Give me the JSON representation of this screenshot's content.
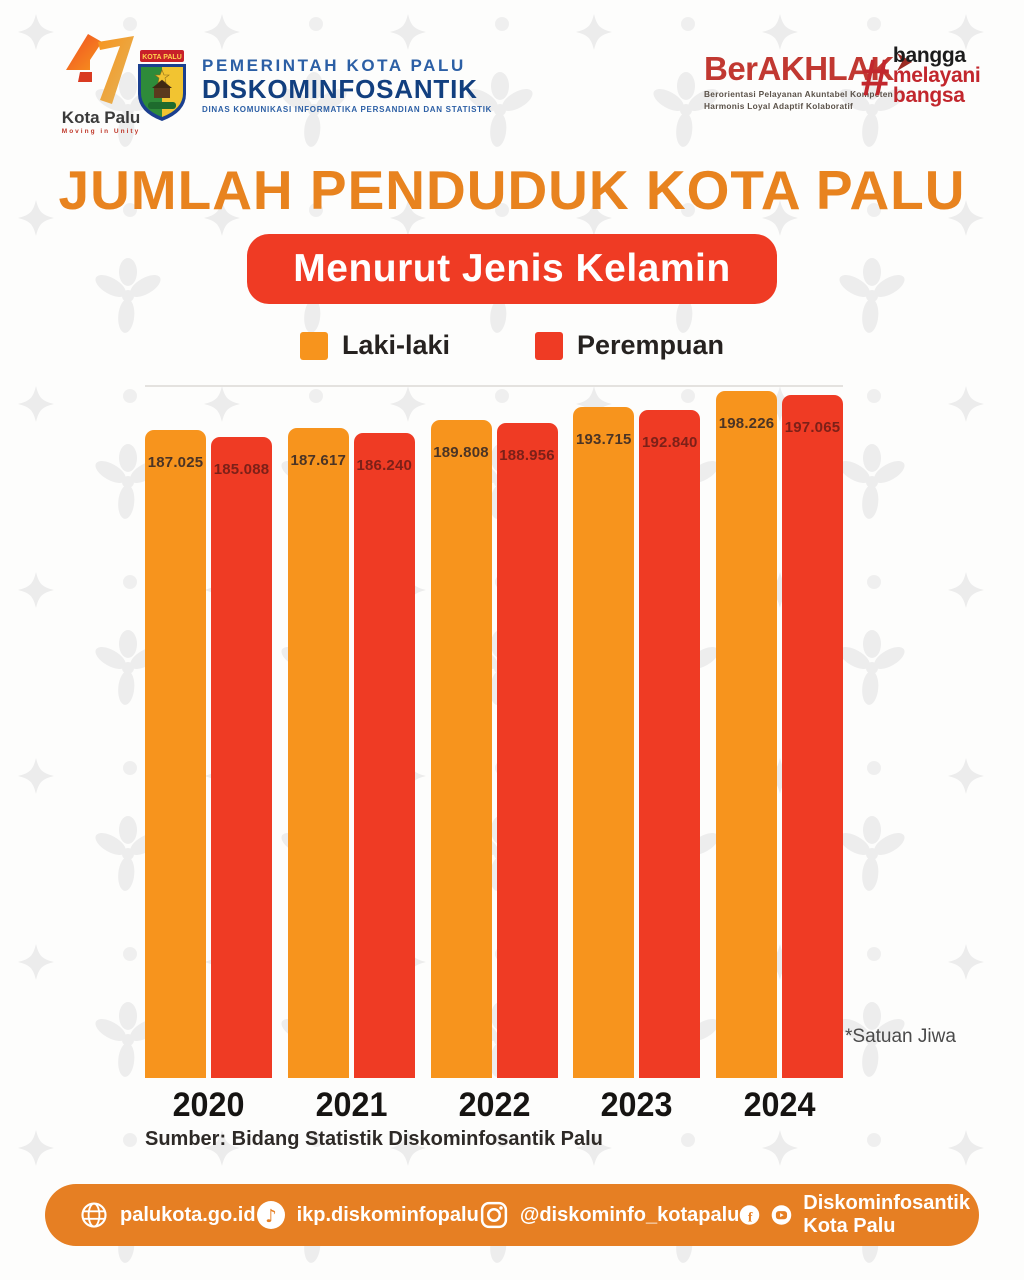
{
  "header": {
    "city_logo": {
      "name": "Kota Palu",
      "tagline": "Moving in Unity",
      "anniversary": "47"
    },
    "emblem_text": "KOTA PALU",
    "agency": {
      "line1": "PEMERINTAH KOTA PALU",
      "line2": "DISKOMINFOSANTIK",
      "line3": "DINAS KOMUNIKASI INFORMATIKA PERSANDIAN DAN STATISTIK"
    },
    "berakhlak": {
      "wordmark": "BerAKHLAK",
      "tagline1": "Berorientasi Pelayanan Akuntabel Kompeten",
      "tagline2": "Harmonis Loyal Adaptif Kolaboratif",
      "hashtag": "#",
      "words": [
        "bangga",
        "melayani",
        "bangsa"
      ]
    }
  },
  "title": "JUMLAH PENDUDUK KOTA PALU",
  "subtitle": "Menurut Jenis Kelamin",
  "chart_data": {
    "type": "bar",
    "title": "Jumlah Penduduk Kota Palu Menurut Jenis Kelamin",
    "categories": [
      "2020",
      "2021",
      "2022",
      "2023",
      "2024"
    ],
    "series": [
      {
        "name": "Laki-laki",
        "color": "#F7941D",
        "label_color": "#4b3425",
        "values": [
          187025,
          187617,
          189808,
          193715,
          198226
        ],
        "labels": [
          "187.025",
          "187.617",
          "189.808",
          "193.715",
          "198.226"
        ]
      },
      {
        "name": "Perempuan",
        "color": "#EF3B24",
        "label_color": "#7c2018",
        "values": [
          185088,
          186240,
          188956,
          192840,
          197065
        ],
        "labels": [
          "185.088",
          "186.240",
          "188.956",
          "192.840",
          "197.065"
        ]
      }
    ],
    "ylim": [
      0,
      200000
    ],
    "grid": false,
    "legend_position": "top",
    "unit_note": "*Satuan Jiwa"
  },
  "source": "Sumber: Bidang Statistik Diskominfosantik Palu",
  "footer": {
    "items": [
      {
        "icon": "globe-icon",
        "text": "palukota.go.id"
      },
      {
        "icon": "tiktok-icon",
        "text": "ikp.diskominfopalu"
      },
      {
        "icon": "instagram-icon",
        "text": "@diskominfo_kotapalu"
      },
      {
        "icon": "facebook-youtube-icon",
        "text": "Diskominfosantik Kota Palu"
      }
    ]
  },
  "colors": {
    "title": "#E8831F",
    "subtitle_bg": "#EF3B24",
    "footer_bg": "#E67F23",
    "male": "#F7941D",
    "female": "#EF3B24"
  }
}
